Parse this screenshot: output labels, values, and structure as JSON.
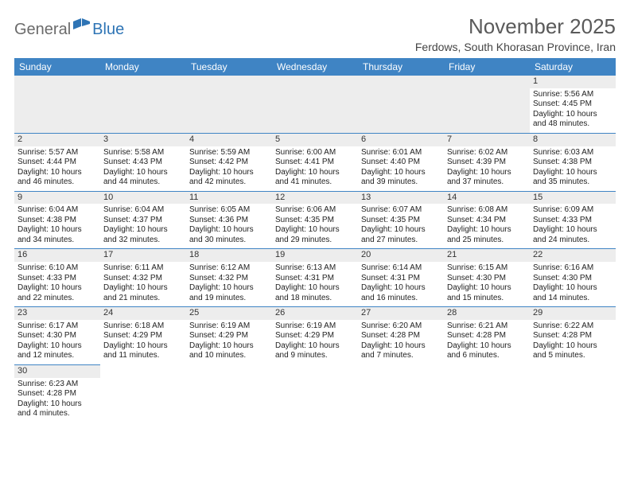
{
  "brand": {
    "part1": "General",
    "part2": "Blue"
  },
  "title": "November 2025",
  "location": "Ferdows, South Khorasan Province, Iran",
  "colors": {
    "header_bg": "#3f84c4",
    "header_text": "#ffffff",
    "daynum_bg": "#ededed",
    "border": "#3f84c4",
    "brand_gray": "#6b6b6b",
    "brand_blue": "#2e74b5"
  },
  "weekdays": [
    "Sunday",
    "Monday",
    "Tuesday",
    "Wednesday",
    "Thursday",
    "Friday",
    "Saturday"
  ],
  "weeks": [
    [
      null,
      null,
      null,
      null,
      null,
      null,
      {
        "n": "1",
        "sr": "Sunrise: 5:56 AM",
        "ss": "Sunset: 4:45 PM",
        "dl": "Daylight: 10 hours and 48 minutes."
      }
    ],
    [
      {
        "n": "2",
        "sr": "Sunrise: 5:57 AM",
        "ss": "Sunset: 4:44 PM",
        "dl": "Daylight: 10 hours and 46 minutes."
      },
      {
        "n": "3",
        "sr": "Sunrise: 5:58 AM",
        "ss": "Sunset: 4:43 PM",
        "dl": "Daylight: 10 hours and 44 minutes."
      },
      {
        "n": "4",
        "sr": "Sunrise: 5:59 AM",
        "ss": "Sunset: 4:42 PM",
        "dl": "Daylight: 10 hours and 42 minutes."
      },
      {
        "n": "5",
        "sr": "Sunrise: 6:00 AM",
        "ss": "Sunset: 4:41 PM",
        "dl": "Daylight: 10 hours and 41 minutes."
      },
      {
        "n": "6",
        "sr": "Sunrise: 6:01 AM",
        "ss": "Sunset: 4:40 PM",
        "dl": "Daylight: 10 hours and 39 minutes."
      },
      {
        "n": "7",
        "sr": "Sunrise: 6:02 AM",
        "ss": "Sunset: 4:39 PM",
        "dl": "Daylight: 10 hours and 37 minutes."
      },
      {
        "n": "8",
        "sr": "Sunrise: 6:03 AM",
        "ss": "Sunset: 4:38 PM",
        "dl": "Daylight: 10 hours and 35 minutes."
      }
    ],
    [
      {
        "n": "9",
        "sr": "Sunrise: 6:04 AM",
        "ss": "Sunset: 4:38 PM",
        "dl": "Daylight: 10 hours and 34 minutes."
      },
      {
        "n": "10",
        "sr": "Sunrise: 6:04 AM",
        "ss": "Sunset: 4:37 PM",
        "dl": "Daylight: 10 hours and 32 minutes."
      },
      {
        "n": "11",
        "sr": "Sunrise: 6:05 AM",
        "ss": "Sunset: 4:36 PM",
        "dl": "Daylight: 10 hours and 30 minutes."
      },
      {
        "n": "12",
        "sr": "Sunrise: 6:06 AM",
        "ss": "Sunset: 4:35 PM",
        "dl": "Daylight: 10 hours and 29 minutes."
      },
      {
        "n": "13",
        "sr": "Sunrise: 6:07 AM",
        "ss": "Sunset: 4:35 PM",
        "dl": "Daylight: 10 hours and 27 minutes."
      },
      {
        "n": "14",
        "sr": "Sunrise: 6:08 AM",
        "ss": "Sunset: 4:34 PM",
        "dl": "Daylight: 10 hours and 25 minutes."
      },
      {
        "n": "15",
        "sr": "Sunrise: 6:09 AM",
        "ss": "Sunset: 4:33 PM",
        "dl": "Daylight: 10 hours and 24 minutes."
      }
    ],
    [
      {
        "n": "16",
        "sr": "Sunrise: 6:10 AM",
        "ss": "Sunset: 4:33 PM",
        "dl": "Daylight: 10 hours and 22 minutes."
      },
      {
        "n": "17",
        "sr": "Sunrise: 6:11 AM",
        "ss": "Sunset: 4:32 PM",
        "dl": "Daylight: 10 hours and 21 minutes."
      },
      {
        "n": "18",
        "sr": "Sunrise: 6:12 AM",
        "ss": "Sunset: 4:32 PM",
        "dl": "Daylight: 10 hours and 19 minutes."
      },
      {
        "n": "19",
        "sr": "Sunrise: 6:13 AM",
        "ss": "Sunset: 4:31 PM",
        "dl": "Daylight: 10 hours and 18 minutes."
      },
      {
        "n": "20",
        "sr": "Sunrise: 6:14 AM",
        "ss": "Sunset: 4:31 PM",
        "dl": "Daylight: 10 hours and 16 minutes."
      },
      {
        "n": "21",
        "sr": "Sunrise: 6:15 AM",
        "ss": "Sunset: 4:30 PM",
        "dl": "Daylight: 10 hours and 15 minutes."
      },
      {
        "n": "22",
        "sr": "Sunrise: 6:16 AM",
        "ss": "Sunset: 4:30 PM",
        "dl": "Daylight: 10 hours and 14 minutes."
      }
    ],
    [
      {
        "n": "23",
        "sr": "Sunrise: 6:17 AM",
        "ss": "Sunset: 4:30 PM",
        "dl": "Daylight: 10 hours and 12 minutes."
      },
      {
        "n": "24",
        "sr": "Sunrise: 6:18 AM",
        "ss": "Sunset: 4:29 PM",
        "dl": "Daylight: 10 hours and 11 minutes."
      },
      {
        "n": "25",
        "sr": "Sunrise: 6:19 AM",
        "ss": "Sunset: 4:29 PM",
        "dl": "Daylight: 10 hours and 10 minutes."
      },
      {
        "n": "26",
        "sr": "Sunrise: 6:19 AM",
        "ss": "Sunset: 4:29 PM",
        "dl": "Daylight: 10 hours and 9 minutes."
      },
      {
        "n": "27",
        "sr": "Sunrise: 6:20 AM",
        "ss": "Sunset: 4:28 PM",
        "dl": "Daylight: 10 hours and 7 minutes."
      },
      {
        "n": "28",
        "sr": "Sunrise: 6:21 AM",
        "ss": "Sunset: 4:28 PM",
        "dl": "Daylight: 10 hours and 6 minutes."
      },
      {
        "n": "29",
        "sr": "Sunrise: 6:22 AM",
        "ss": "Sunset: 4:28 PM",
        "dl": "Daylight: 10 hours and 5 minutes."
      }
    ],
    [
      {
        "n": "30",
        "sr": "Sunrise: 6:23 AM",
        "ss": "Sunset: 4:28 PM",
        "dl": "Daylight: 10 hours and 4 minutes."
      },
      null,
      null,
      null,
      null,
      null,
      null
    ]
  ]
}
